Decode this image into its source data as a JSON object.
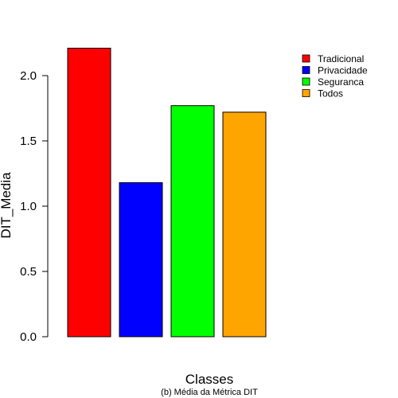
{
  "chart_data": {
    "type": "bar",
    "categories": [
      "Tradicional",
      "Privacidade",
      "Seguranca",
      "Todos"
    ],
    "values": [
      2.21,
      1.18,
      1.77,
      1.72
    ],
    "colors": [
      "#ff0000",
      "#0000ff",
      "#00ff00",
      "#ffa500"
    ],
    "title": "",
    "subtitle": "(b) Média da Métrica DIT",
    "xlabel": "Classes",
    "ylabel": "DIT_Media",
    "ylim": [
      0,
      2.0
    ],
    "yticks": [
      0.0,
      0.5,
      1.0,
      1.5,
      2.0
    ],
    "ytick_labels": [
      "0.0",
      "0.5",
      "1.0",
      "1.5",
      "2.0"
    ],
    "legend": {
      "position": "top-right",
      "entries": [
        "Tradicional",
        "Privacidade",
        "Seguranca",
        "Todos"
      ]
    },
    "grid": false
  }
}
